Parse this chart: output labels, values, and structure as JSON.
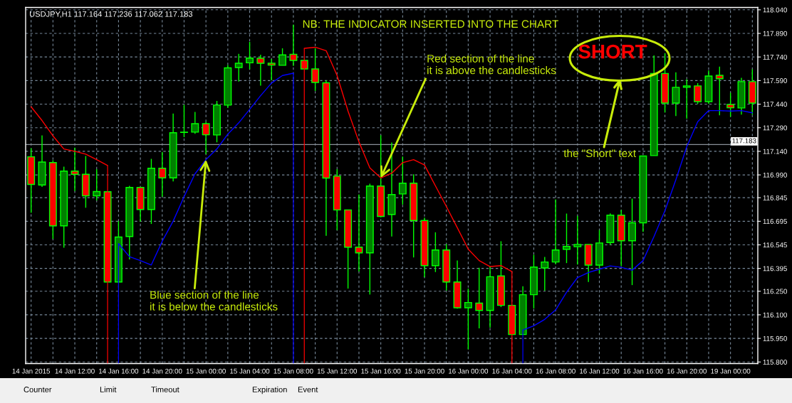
{
  "chart_data": {
    "type": "candlestick",
    "title": "USDJPY,H1 117.164 117.236 117.062 117.183",
    "categories": [
      "14 Jan 2015",
      null,
      null,
      null,
      "14 Jan 12:00",
      null,
      null,
      null,
      "14 Jan 16:00",
      null,
      null,
      null,
      "14 Jan 20:00",
      null,
      null,
      null,
      "15 Jan 00:00",
      null,
      null,
      null,
      "15 Jan 04:00",
      null,
      null,
      null,
      "15 Jan 08:00",
      null,
      null,
      null,
      "15 Jan 12:00",
      null,
      null,
      null,
      "15 Jan 16:00",
      null,
      null,
      null,
      "15 Jan 20:00",
      null,
      null,
      null,
      "16 Jan 00:00",
      null,
      null,
      null,
      "16 Jan 04:00",
      null,
      null,
      null,
      "16 Jan 08:00",
      null,
      null,
      null,
      "16 Jan 12:00",
      null,
      null,
      null,
      "16 Jan 16:00",
      null,
      null,
      null,
      "16 Jan 20:00",
      null,
      null,
      null,
      "19 Jan 00:00",
      null,
      null
    ],
    "ohlc": [
      [
        117.105,
        117.16,
        116.749,
        116.929
      ],
      [
        116.926,
        117.241,
        116.914,
        117.072
      ],
      [
        117.068,
        117.083,
        116.583,
        116.666
      ],
      [
        116.666,
        117.042,
        116.527,
        117.014
      ],
      [
        117.014,
        117.163,
        116.887,
        116.994
      ],
      [
        116.994,
        117.11,
        116.781,
        116.857
      ],
      [
        116.857,
        117.027,
        116.827,
        116.884
      ],
      [
        116.883,
        116.883,
        116.309,
        116.309
      ],
      [
        116.309,
        116.696,
        116.309,
        116.595
      ],
      [
        116.598,
        116.92,
        116.452,
        116.91
      ],
      [
        116.91,
        116.91,
        116.693,
        116.77
      ],
      [
        116.77,
        117.092,
        116.678,
        117.032
      ],
      [
        117.032,
        117.136,
        116.851,
        116.971
      ],
      [
        116.971,
        117.38,
        116.949,
        117.258
      ],
      [
        117.26,
        117.436,
        117.23,
        117.262
      ],
      [
        117.262,
        117.39,
        117.251,
        117.316
      ],
      [
        117.316,
        117.328,
        117.122,
        117.245
      ],
      [
        117.244,
        117.461,
        117.197,
        117.434
      ],
      [
        117.434,
        117.689,
        117.416,
        117.671
      ],
      [
        117.673,
        117.76,
        117.584,
        117.7
      ],
      [
        117.703,
        117.836,
        117.662,
        117.733
      ],
      [
        117.732,
        117.754,
        117.558,
        117.7
      ],
      [
        117.7,
        117.727,
        117.592,
        117.688
      ],
      [
        117.687,
        117.795,
        117.687,
        117.753
      ],
      [
        117.757,
        117.945,
        117.683,
        117.718
      ],
      [
        117.718,
        117.718,
        117.664,
        117.664
      ],
      [
        117.664,
        117.795,
        117.524,
        117.578
      ],
      [
        117.576,
        117.592,
        116.603,
        116.97
      ],
      [
        116.982,
        117.027,
        116.639,
        116.767
      ],
      [
        116.767,
        116.767,
        116.267,
        116.53
      ],
      [
        116.53,
        116.866,
        116.375,
        116.494
      ],
      [
        116.494,
        116.934,
        116.229,
        116.919
      ],
      [
        116.919,
        117.242,
        116.72,
        116.726
      ],
      [
        116.738,
        117.196,
        116.598,
        116.865
      ],
      [
        116.869,
        117.107,
        116.801,
        116.937
      ],
      [
        116.937,
        116.994,
        116.465,
        116.7
      ],
      [
        116.7,
        116.718,
        116.339,
        116.413
      ],
      [
        116.413,
        116.625,
        116.372,
        116.512
      ],
      [
        116.512,
        116.55,
        116.255,
        116.309
      ],
      [
        116.309,
        116.445,
        116.139,
        116.145
      ],
      [
        116.145,
        116.267,
        115.88,
        116.178
      ],
      [
        116.174,
        116.399,
        116.014,
        116.128
      ],
      [
        116.128,
        116.407,
        116.018,
        116.342
      ],
      [
        116.347,
        116.568,
        116.149,
        116.16
      ],
      [
        116.16,
        116.16,
        115.975,
        115.975
      ],
      [
        115.975,
        116.282,
        115.975,
        116.228
      ],
      [
        116.228,
        116.482,
        116.14,
        116.404
      ],
      [
        116.398,
        116.468,
        116.253,
        116.436
      ],
      [
        116.436,
        116.834,
        116.422,
        116.512
      ],
      [
        116.517,
        116.744,
        116.429,
        116.535
      ],
      [
        116.533,
        116.729,
        116.42,
        116.548
      ],
      [
        116.548,
        116.548,
        116.309,
        116.416
      ],
      [
        116.416,
        116.639,
        116.361,
        116.557
      ],
      [
        116.56,
        116.745,
        116.545,
        116.734
      ],
      [
        116.734,
        116.767,
        116.41,
        116.571
      ],
      [
        116.571,
        116.839,
        116.289,
        116.685
      ],
      [
        116.685,
        117.11,
        116.628,
        117.11
      ],
      [
        117.113,
        117.75,
        117.113,
        117.635
      ],
      [
        117.635,
        117.763,
        117.387,
        117.447
      ],
      [
        117.447,
        117.643,
        117.364,
        117.547
      ],
      [
        117.547,
        117.598,
        117.348,
        117.556
      ],
      [
        117.556,
        117.574,
        117.441,
        117.456
      ],
      [
        117.456,
        117.655,
        117.441,
        117.619
      ],
      [
        117.623,
        117.679,
        117.369,
        117.602
      ],
      [
        117.438,
        117.513,
        117.36,
        117.417
      ],
      [
        117.416,
        117.607,
        117.373,
        117.583
      ],
      [
        117.583,
        117.662,
        117.372,
        117.447
      ]
    ],
    "colors": [
      "#ff0000",
      "#008000",
      "#ff0000",
      "#008000",
      "#ff0000",
      "#ff0000",
      "#008000",
      "#ff0000",
      "#008000",
      "#008000",
      "#ff0000",
      "#008000",
      "#ff0000",
      "#008000",
      "#008000",
      "#008000",
      "#ff0000",
      "#008000",
      "#008000",
      "#008000",
      "#008000",
      "#ff0000",
      "#ff0000",
      "#008000",
      "#ff0000",
      "#ff0000",
      "#ff0000",
      "#ff0000",
      "#ff0000",
      "#ff0000",
      "#ff0000",
      "#008000",
      "#ff0000",
      "#008000",
      "#008000",
      "#ff0000",
      "#ff0000",
      "#008000",
      "#ff0000",
      "#ff0000",
      "#008000",
      "#ff0000",
      "#008000",
      "#ff0000",
      "#ff0000",
      "#008000",
      "#008000",
      "#008000",
      "#008000",
      "#008000",
      "#008000",
      "#ff0000",
      "#008000",
      "#008000",
      "#ff0000",
      "#008000",
      "#008000",
      "#008000",
      "#ff0000",
      "#008000",
      "#008000",
      "#ff0000",
      "#008000",
      "#ff0000",
      "#ff0000",
      "#008000",
      "#ff0000"
    ],
    "series": [
      {
        "type": "line",
        "color": "#ff0000",
        "values": [
          117.423,
          117.336,
          117.238,
          117.155,
          117.14,
          117.122,
          117.087,
          117.05,
          null,
          null,
          null,
          null,
          null,
          null,
          null,
          null,
          null,
          null,
          null,
          null,
          null,
          null,
          null,
          null,
          null,
          117.795,
          117.802,
          117.78,
          117.622,
          117.396,
          117.2,
          117.034,
          116.971,
          117.001,
          117.068,
          117.087,
          117.053,
          116.92,
          116.789,
          116.654,
          116.518,
          116.445,
          116.407,
          116.413,
          116.375,
          null,
          null,
          null,
          null,
          null,
          null,
          null,
          null,
          null,
          null,
          null,
          null,
          null,
          null,
          null,
          null,
          null,
          null,
          null,
          null,
          null,
          null
        ]
      },
      {
        "type": "line",
        "color": "#0000ff",
        "values": [
          null,
          null,
          null,
          null,
          null,
          null,
          null,
          null,
          116.553,
          116.47,
          116.445,
          116.417,
          116.568,
          116.696,
          116.852,
          116.997,
          117.087,
          117.155,
          117.249,
          117.321,
          117.407,
          117.494,
          117.574,
          117.622,
          117.637,
          null,
          null,
          null,
          null,
          null,
          null,
          null,
          null,
          null,
          null,
          null,
          null,
          null,
          null,
          null,
          null,
          null,
          null,
          null,
          null,
          116.003,
          116.03,
          116.071,
          116.131,
          116.244,
          116.337,
          116.369,
          116.39,
          116.411,
          116.402,
          116.384,
          116.445,
          116.598,
          116.762,
          116.959,
          117.17,
          117.328,
          117.399,
          117.399,
          117.396,
          117.399,
          117.385
        ]
      },
      {
        "type": "bar",
        "color": "#ff0000",
        "values": [
          null,
          null,
          null,
          null,
          null,
          null,
          null,
          117.05,
          null,
          null,
          null,
          null,
          null,
          null,
          null,
          null,
          null,
          null,
          null,
          null,
          null,
          null,
          null,
          null,
          null,
          117.795,
          null,
          null,
          null,
          null,
          null,
          null,
          null,
          null,
          null,
          null,
          null,
          null,
          null,
          null,
          null,
          null,
          null,
          null,
          116.375,
          null,
          null,
          null,
          null,
          null,
          null,
          null,
          null,
          null,
          null,
          null,
          null,
          null,
          null,
          null,
          null,
          null,
          null,
          null,
          null,
          null,
          null
        ]
      },
      {
        "type": "bar",
        "color": "#0000ff",
        "values": [
          null,
          null,
          null,
          null,
          null,
          null,
          null,
          null,
          116.553,
          null,
          null,
          null,
          null,
          null,
          null,
          null,
          null,
          null,
          null,
          null,
          null,
          null,
          null,
          null,
          117.637,
          null,
          null,
          null,
          null,
          null,
          null,
          null,
          null,
          null,
          null,
          null,
          null,
          null,
          null,
          null,
          null,
          null,
          null,
          null,
          null,
          116.003,
          null,
          null,
          null,
          null,
          null,
          null,
          null,
          null,
          null,
          null,
          null,
          null,
          null,
          null,
          null,
          null,
          null,
          null,
          null,
          null,
          null
        ]
      }
    ],
    "ylim": [
      115.79,
      118.055
    ],
    "yticks": [
      {
        "value": 115.8,
        "label": "115.800"
      },
      {
        "value": 115.95,
        "label": "115.950"
      },
      {
        "value": 116.1,
        "label": "116.100"
      },
      {
        "value": 116.25,
        "label": "116.250"
      },
      {
        "value": 116.395,
        "label": "116.395"
      },
      {
        "value": 116.545,
        "label": "116.545"
      },
      {
        "value": 116.695,
        "label": "116.695"
      },
      {
        "value": 116.845,
        "label": "116.845"
      },
      {
        "value": 116.99,
        "label": "116.990"
      },
      {
        "value": 117.14,
        "label": "117.140"
      },
      {
        "value": 117.29,
        "label": "117.290"
      },
      {
        "value": 117.44,
        "label": "117.440"
      },
      {
        "value": 117.59,
        "label": "117.590"
      },
      {
        "value": 117.74,
        "label": "117.740"
      },
      {
        "value": 117.89,
        "label": "117.890"
      },
      {
        "value": 118.04,
        "label": "118.040"
      }
    ],
    "grid": true,
    "ref_lines": [
      {
        "axis": "y",
        "value": 117.183,
        "label": "117.183",
        "color": "#8a9199"
      }
    ],
    "annotations": [
      "NB: THE INDICATOR INSERTED INTO THE CHART",
      {
        "text": "Red section of the line\nit is above the candlesticks",
        "x": "15 Jan 16:00",
        "y": 116.971
      },
      "SHORT",
      "the \"Short\" text",
      {
        "text": "Blue section of the line\nit is below the candlesticks",
        "x": "15 Jan 00:00",
        "y": 117.087
      },
      "Counter",
      "Limit",
      "Timeout",
      "Expiration",
      "Event"
    ]
  }
}
